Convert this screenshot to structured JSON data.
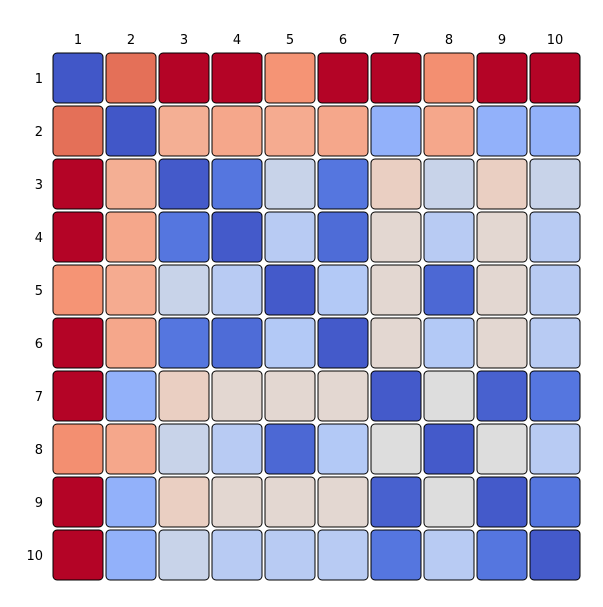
{
  "chart_data": {
    "type": "heatmap",
    "title": "",
    "xlabel": "",
    "ylabel": "",
    "x_labels": [
      "1",
      "2",
      "3",
      "4",
      "5",
      "6",
      "7",
      "8",
      "9",
      "10"
    ],
    "y_labels": [
      "1",
      "2",
      "3",
      "4",
      "5",
      "6",
      "7",
      "8",
      "9",
      "10"
    ],
    "x_axis_position": "top",
    "colormap": "coolwarm",
    "value_range": [
      0,
      1
    ],
    "grid": false,
    "legend": "none",
    "cell_border_color": "#000000",
    "values": [
      [
        0.03,
        0.83,
        1.0,
        1.0,
        0.75,
        1.0,
        1.0,
        0.76,
        1.0,
        1.0
      ],
      [
        0.83,
        0.03,
        0.68,
        0.7,
        0.69,
        0.7,
        0.31,
        0.7,
        0.31,
        0.31
      ],
      [
        1.0,
        0.68,
        0.04,
        0.12,
        0.45,
        0.12,
        0.57,
        0.45,
        0.57,
        0.45
      ],
      [
        1.0,
        0.7,
        0.12,
        0.04,
        0.41,
        0.09,
        0.53,
        0.41,
        0.53,
        0.41
      ],
      [
        0.75,
        0.69,
        0.45,
        0.41,
        0.04,
        0.4,
        0.53,
        0.08,
        0.53,
        0.41
      ],
      [
        1.0,
        0.7,
        0.12,
        0.09,
        0.4,
        0.04,
        0.53,
        0.4,
        0.53,
        0.41
      ],
      [
        1.0,
        0.31,
        0.57,
        0.53,
        0.53,
        0.53,
        0.04,
        0.5,
        0.06,
        0.12
      ],
      [
        0.76,
        0.7,
        0.45,
        0.41,
        0.08,
        0.4,
        0.5,
        0.04,
        0.5,
        0.41
      ],
      [
        1.0,
        0.31,
        0.57,
        0.53,
        0.53,
        0.53,
        0.06,
        0.5,
        0.04,
        0.12
      ],
      [
        1.0,
        0.31,
        0.45,
        0.41,
        0.41,
        0.41,
        0.12,
        0.41,
        0.12,
        0.04
      ]
    ]
  }
}
